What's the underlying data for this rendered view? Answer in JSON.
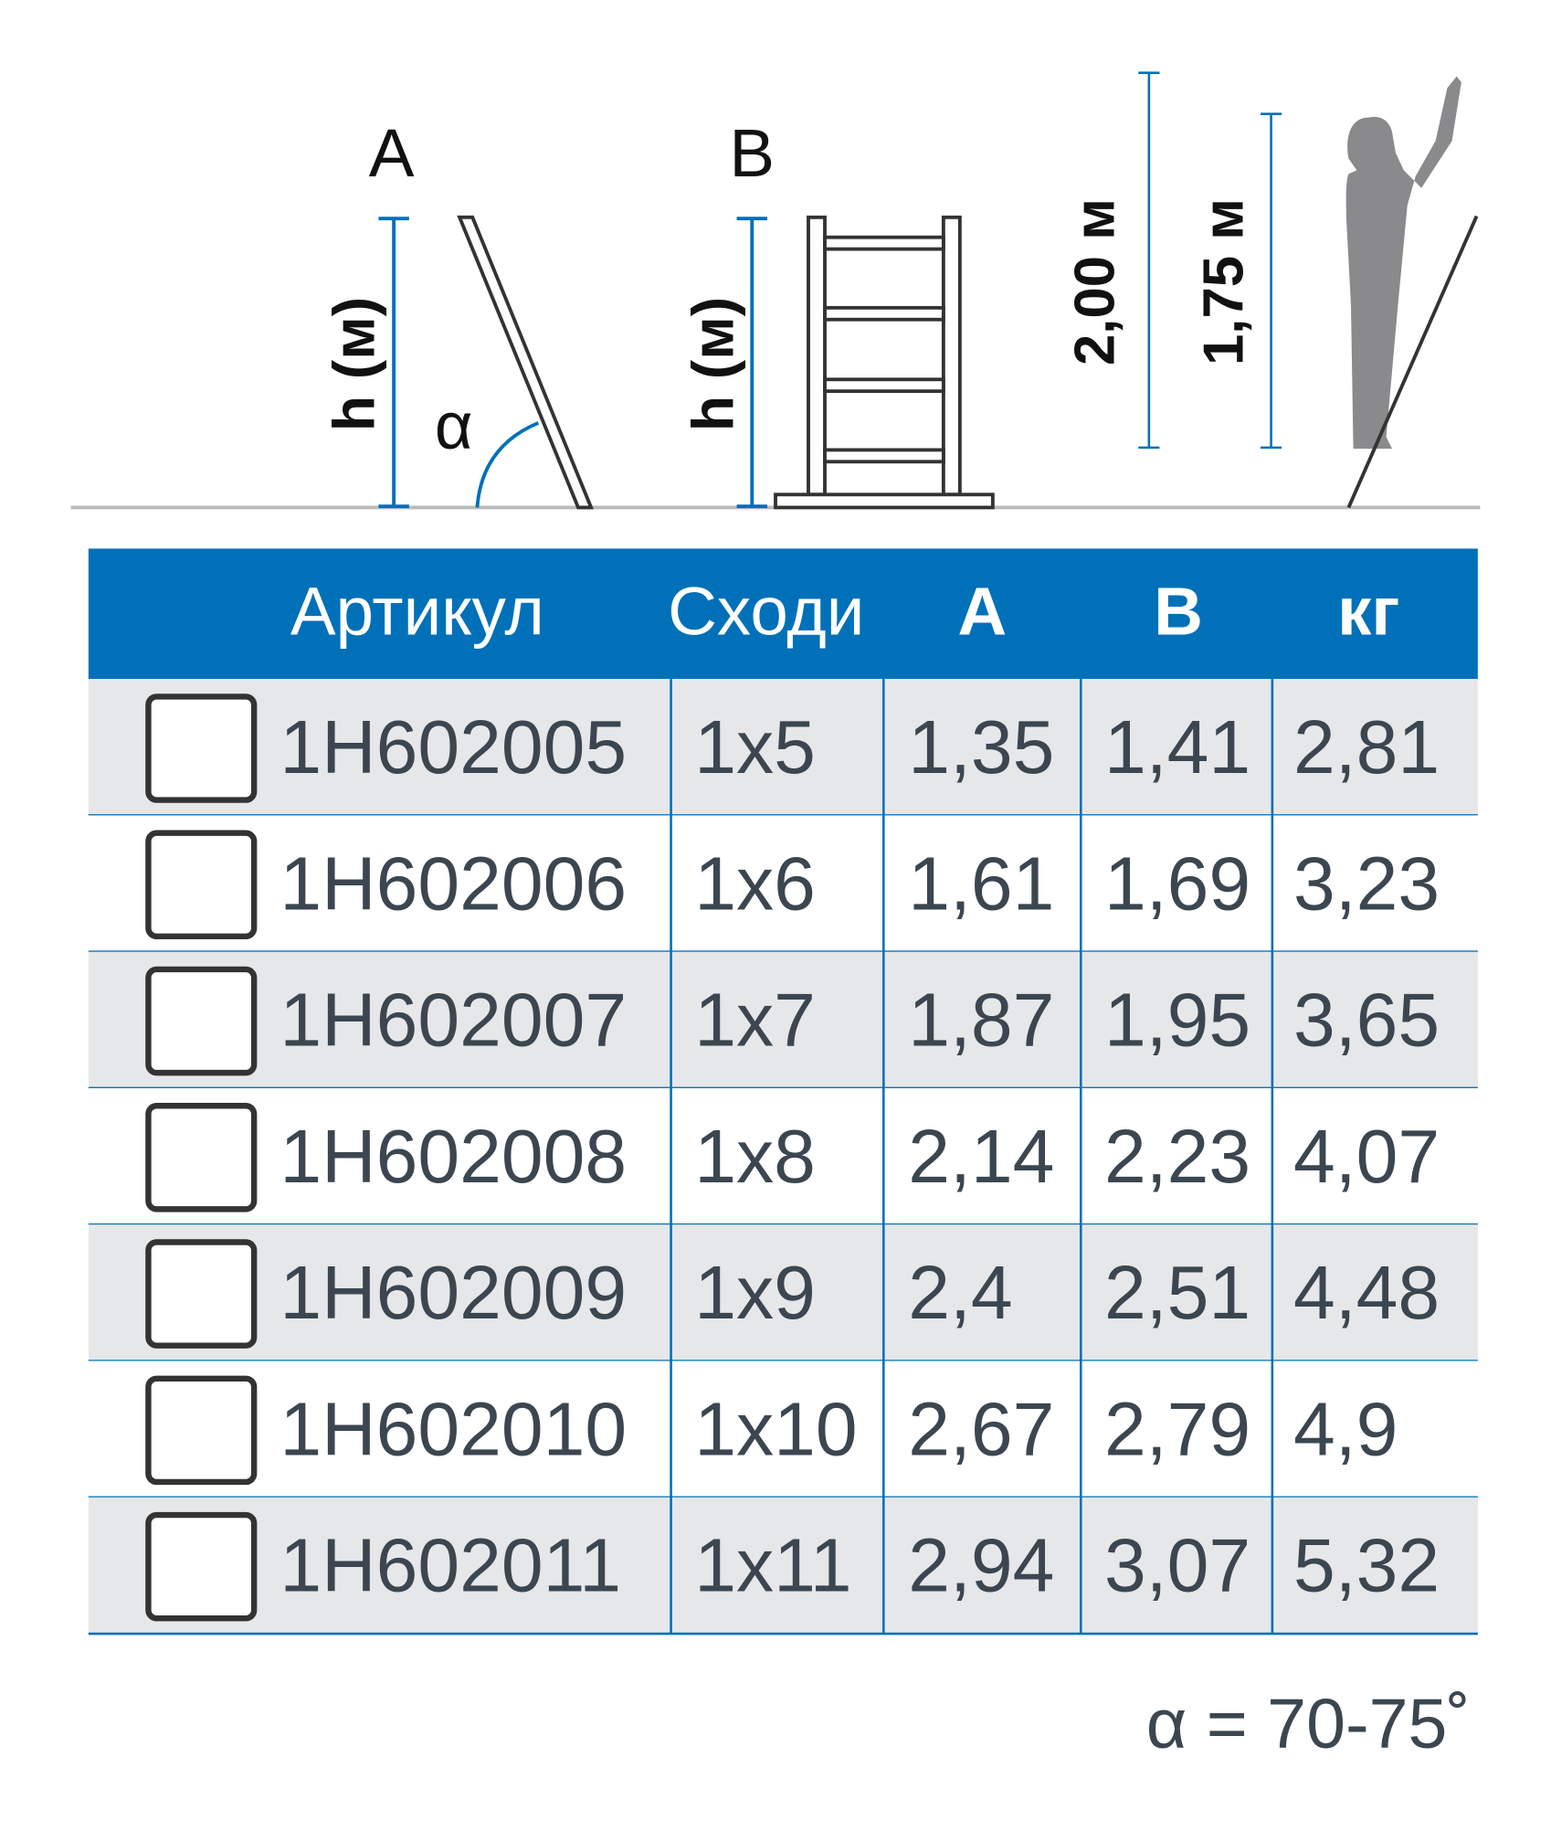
{
  "diagram": {
    "label_a": "A",
    "label_b": "B",
    "height_label_a": "h (м)",
    "height_label_b": "h (м)",
    "angle_symbol": "α",
    "reach_total": "2,00 м",
    "reach_person": "1,75 м"
  },
  "colors": {
    "accent": "#0070b8",
    "row_shade": "#e6e7e9",
    "text": "#3b4650",
    "figure": "#8a8a8c"
  },
  "table": {
    "headers": {
      "article": "Артикул",
      "steps": "Сходи",
      "a": "A",
      "b": "B",
      "kg": "кг"
    },
    "rows": [
      {
        "article": "1H602005",
        "steps": "1x5",
        "a": "1,35",
        "b": "1,41",
        "kg": "2,81"
      },
      {
        "article": "1H602006",
        "steps": "1x6",
        "a": "1,61",
        "b": "1,69",
        "kg": "3,23"
      },
      {
        "article": "1H602007",
        "steps": "1x7",
        "a": "1,87",
        "b": "1,95",
        "kg": "3,65"
      },
      {
        "article": "1H602008",
        "steps": "1x8",
        "a": "2,14",
        "b": "2,23",
        "kg": "4,07"
      },
      {
        "article": "1H602009",
        "steps": "1x9",
        "a": "2,4",
        "b": "2,51",
        "kg": "4,48"
      },
      {
        "article": "1H602010",
        "steps": "1x10",
        "a": "2,67",
        "b": "2,79",
        "kg": "4,9"
      },
      {
        "article": "1H602011",
        "steps": "1x11",
        "a": "2,94",
        "b": "3,07",
        "kg": "5,32"
      }
    ]
  },
  "footnote": "α = 70-75˚"
}
